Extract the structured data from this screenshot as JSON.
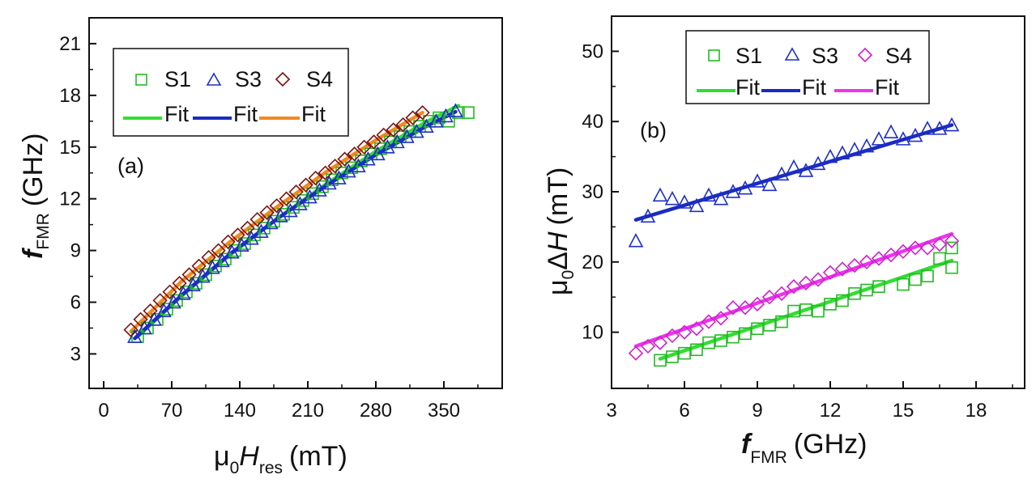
{
  "chart_data": [
    {
      "type": "scatter",
      "panel_label": "(a)",
      "xlabel": {
        "prefix": "μ",
        "sub": "0",
        "main": "H",
        "sub2": "res",
        "unit": "(mT)"
      },
      "ylabel": {
        "main": "f",
        "sub": "FMR",
        "unit": "(GHz)"
      },
      "xlim": [
        -15,
        410
      ],
      "ylim": [
        1,
        22.5
      ],
      "xticks": [
        0,
        70,
        140,
        210,
        280,
        350
      ],
      "yticks": [
        3,
        6,
        9,
        12,
        15,
        18,
        21
      ],
      "legend": {
        "position": "top-left",
        "marker_labels": [
          "S1",
          "S3",
          "S4"
        ],
        "fit_labels": [
          "Fit",
          "Fit",
          "Fit"
        ]
      },
      "series": [
        {
          "name": "S1",
          "marker": "square",
          "color": "#22bb22",
          "x": [
            35,
            45,
            55,
            65,
            75,
            85,
            95,
            105,
            115,
            125,
            135,
            145,
            155,
            165,
            175,
            185,
            195,
            205,
            215,
            225,
            235,
            245,
            255,
            265,
            275,
            285,
            295,
            305,
            315,
            325,
            335,
            345,
            355,
            365,
            375
          ],
          "y": [
            4.0,
            4.5,
            5.0,
            5.6,
            6.1,
            6.6,
            7.1,
            7.6,
            8.1,
            8.5,
            9.0,
            9.4,
            9.9,
            10.3,
            10.7,
            11.1,
            11.5,
            11.9,
            12.3,
            12.7,
            13.1,
            13.5,
            13.8,
            14.2,
            14.6,
            14.9,
            15.3,
            15.6,
            15.9,
            16.2,
            16.5,
            16.7,
            16.5,
            17.0,
            17.0
          ]
        },
        {
          "name": "S3",
          "marker": "triangle",
          "color": "#1e2fc8",
          "x": [
            32,
            42,
            52,
            62,
            72,
            82,
            92,
            102,
            112,
            122,
            132,
            142,
            152,
            162,
            172,
            182,
            192,
            202,
            212,
            222,
            232,
            242,
            252,
            262,
            272,
            282,
            292,
            302,
            312,
            322,
            332,
            342,
            352,
            362
          ],
          "y": [
            4.0,
            4.5,
            5.0,
            5.5,
            6.0,
            6.5,
            7.0,
            7.5,
            8.0,
            8.4,
            8.9,
            9.3,
            9.7,
            10.1,
            10.6,
            11.0,
            11.3,
            11.7,
            12.1,
            12.5,
            12.9,
            13.2,
            13.6,
            13.9,
            14.3,
            14.6,
            15.0,
            15.3,
            15.6,
            15.9,
            16.2,
            16.5,
            16.8,
            17.1
          ]
        },
        {
          "name": "S4",
          "marker": "diamond",
          "color": "#7a1212",
          "x": [
            28,
            38,
            48,
            58,
            68,
            78,
            88,
            98,
            108,
            118,
            128,
            138,
            148,
            158,
            168,
            178,
            188,
            198,
            208,
            218,
            228,
            238,
            248,
            258,
            268,
            278,
            288,
            298,
            308,
            318,
            328
          ],
          "y": [
            4.4,
            5.0,
            5.5,
            6.1,
            6.6,
            7.1,
            7.6,
            8.1,
            8.6,
            9.0,
            9.5,
            9.9,
            10.3,
            10.8,
            11.2,
            11.6,
            12.0,
            12.4,
            12.8,
            13.2,
            13.5,
            13.9,
            14.3,
            14.6,
            15.0,
            15.3,
            15.7,
            16.0,
            16.3,
            16.7,
            17.0
          ]
        }
      ],
      "fits": [
        {
          "name": "Fit S1",
          "color": "#33dd33",
          "x": [
            35,
            80,
            130,
            180,
            230,
            280,
            330,
            365
          ],
          "y": [
            4.0,
            6.35,
            8.75,
            10.9,
            12.9,
            14.75,
            16.4,
            17.4
          ]
        },
        {
          "name": "Fit S3",
          "color": "#1a2bc0",
          "x": [
            32,
            80,
            130,
            180,
            230,
            280,
            330,
            362
          ],
          "y": [
            3.9,
            6.4,
            8.8,
            10.9,
            12.8,
            14.55,
            16.15,
            17.05
          ]
        },
        {
          "name": "Fit S4",
          "color": "#f08a22",
          "x": [
            28,
            80,
            130,
            180,
            230,
            280,
            328
          ],
          "y": [
            4.3,
            7.2,
            9.5,
            11.6,
            13.6,
            15.4,
            17.0
          ]
        }
      ]
    },
    {
      "type": "scatter",
      "panel_label": "(b)",
      "xlabel": {
        "main": "f",
        "sub": "FMR",
        "unit": "(GHz)"
      },
      "ylabel": {
        "prefix": "μ",
        "sub": "0",
        "delta": "Δ",
        "main": "H",
        "unit": "(mT)"
      },
      "xlim": [
        3,
        20
      ],
      "ylim": [
        2,
        55
      ],
      "xticks": [
        3,
        6,
        9,
        12,
        15,
        18
      ],
      "yticks": [
        10,
        20,
        30,
        40,
        50
      ],
      "legend": {
        "position": "top-center",
        "marker_labels": [
          "S1",
          "S3",
          "S4"
        ],
        "fit_labels": [
          "Fit",
          "Fit",
          "Fit"
        ]
      },
      "series": [
        {
          "name": "S1",
          "marker": "square",
          "color": "#22bb22",
          "x": [
            5.0,
            5.5,
            6.0,
            6.5,
            7.0,
            7.5,
            8.0,
            8.5,
            9.0,
            9.5,
            10.0,
            10.5,
            11.0,
            11.5,
            12.0,
            12.5,
            13.0,
            13.5,
            14.0,
            15.0,
            15.5,
            16.0,
            16.5,
            17.0,
            17.0
          ],
          "y": [
            6.0,
            6.5,
            7.0,
            7.5,
            8.5,
            8.8,
            9.3,
            9.8,
            10.5,
            11.0,
            11.5,
            13.0,
            13.2,
            13.0,
            14.0,
            14.5,
            15.5,
            16.0,
            16.5,
            16.8,
            17.5,
            18.0,
            20.5,
            19.2,
            22.0
          ]
        },
        {
          "name": "S3",
          "marker": "triangle",
          "color": "#1e2fc8",
          "x": [
            4.0,
            4.5,
            5.0,
            5.5,
            6.0,
            6.5,
            7.0,
            7.5,
            8.0,
            8.5,
            9.0,
            9.5,
            10.0,
            10.5,
            11.0,
            11.5,
            12.0,
            12.5,
            13.0,
            13.5,
            14.0,
            14.5,
            15.0,
            15.5,
            16.0,
            16.5,
            17.0
          ],
          "y": [
            23.0,
            26.5,
            29.5,
            29.0,
            28.5,
            28.0,
            29.5,
            29.0,
            30.0,
            30.5,
            31.5,
            31.0,
            32.5,
            33.5,
            33.0,
            34.0,
            35.0,
            35.5,
            36.0,
            36.5,
            37.5,
            38.5,
            37.5,
            38.0,
            39.0,
            39.0,
            39.5
          ]
        },
        {
          "name": "S4",
          "marker": "diamond",
          "color": "#cc22cc",
          "x": [
            4.0,
            4.5,
            5.0,
            5.5,
            6.0,
            6.5,
            7.0,
            7.5,
            8.0,
            8.5,
            9.0,
            9.5,
            10.0,
            10.5,
            11.0,
            11.5,
            12.0,
            12.5,
            13.0,
            13.5,
            14.0,
            14.5,
            15.0,
            15.5,
            16.0,
            16.5,
            17.0
          ],
          "y": [
            7.0,
            8.0,
            8.5,
            9.5,
            10.0,
            10.5,
            11.5,
            12.0,
            13.5,
            13.5,
            14.0,
            15.0,
            15.5,
            16.5,
            17.0,
            17.5,
            18.5,
            19.0,
            19.5,
            20.0,
            20.5,
            21.0,
            21.5,
            22.0,
            22.0,
            22.5,
            23.0
          ]
        }
      ],
      "fits": [
        {
          "name": "Fit S1",
          "color": "#33dd33",
          "x": [
            5,
            17
          ],
          "y": [
            6.2,
            20.2
          ]
        },
        {
          "name": "Fit S3",
          "color": "#1a2bc0",
          "x": [
            4,
            17
          ],
          "y": [
            26.0,
            39.5
          ]
        },
        {
          "name": "Fit S4",
          "color": "#ee33ee",
          "x": [
            4,
            17
          ],
          "y": [
            8.0,
            24.0
          ]
        }
      ]
    }
  ]
}
